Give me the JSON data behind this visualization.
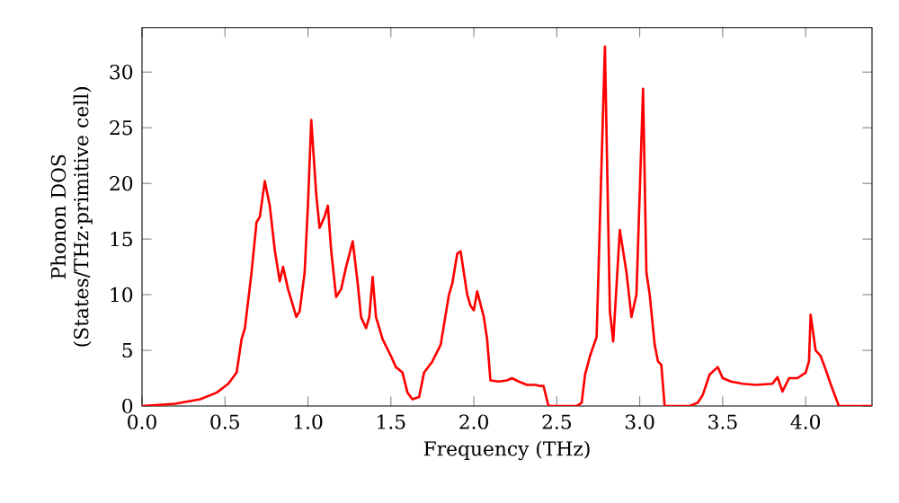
{
  "chart_data": {
    "type": "line",
    "xlabel": "Frequency (THz)",
    "ylabel": "Phonon DOS (States/THz·primitive cell)",
    "xlim": [
      0,
      4.4
    ],
    "ylim": [
      0,
      34
    ],
    "xticks": [
      {
        "value": 0,
        "label": "0.0"
      },
      {
        "value": 0.5,
        "label": "0.5"
      },
      {
        "value": 1,
        "label": "1.0"
      },
      {
        "value": 1.5,
        "label": "1.5"
      },
      {
        "value": 2,
        "label": "2.0"
      },
      {
        "value": 2.5,
        "label": "2.5"
      },
      {
        "value": 3,
        "label": "3.0"
      },
      {
        "value": 3.5,
        "label": "3.5"
      },
      {
        "value": 4,
        "label": "4.0"
      }
    ],
    "yticks": [
      0,
      5,
      10,
      15,
      20,
      25,
      30
    ],
    "marker": "none",
    "line_style": "solid",
    "series": [
      {
        "color": "#ff0000",
        "x": [
          0,
          0.2,
          0.35,
          0.45,
          0.52,
          0.57,
          0.6,
          0.62,
          0.66,
          0.69,
          0.71,
          0.74,
          0.77,
          0.8,
          0.83,
          0.85,
          0.88,
          0.91,
          0.93,
          0.95,
          0.98,
          1.0,
          1.02,
          1.05,
          1.07,
          1.1,
          1.12,
          1.14,
          1.17,
          1.2,
          1.23,
          1.27,
          1.3,
          1.32,
          1.35,
          1.37,
          1.39,
          1.41,
          1.45,
          1.5,
          1.53,
          1.57,
          1.6,
          1.63,
          1.67,
          1.7,
          1.75,
          1.8,
          1.85,
          1.87,
          1.9,
          1.92,
          1.96,
          1.98,
          2.0,
          2.02,
          2.06,
          2.08,
          2.1,
          2.15,
          2.2,
          2.23,
          2.27,
          2.32,
          2.37,
          2.4,
          2.42,
          2.45,
          2.5,
          2.62,
          2.65,
          2.67,
          2.7,
          2.74,
          2.79,
          2.82,
          2.84,
          2.88,
          2.92,
          2.95,
          2.98,
          3.02,
          3.04,
          3.06,
          3.09,
          3.11,
          3.13,
          3.15,
          3.3,
          3.35,
          3.38,
          3.42,
          3.47,
          3.5,
          3.55,
          3.62,
          3.7,
          3.8,
          3.83,
          3.86,
          3.9,
          3.95,
          4.0,
          4.02,
          4.03,
          4.06,
          4.09,
          4.12,
          4.15,
          4.2,
          4.4
        ],
        "values": [
          0,
          0.2,
          0.6,
          1.2,
          2,
          3,
          6,
          7,
          12,
          16.5,
          17,
          20.2,
          18,
          14,
          11.2,
          12.5,
          10.5,
          9,
          8,
          8.5,
          12,
          18,
          25.7,
          19,
          16,
          17,
          18,
          14,
          9.8,
          10.5,
          12.5,
          14.8,
          11,
          8,
          7,
          8,
          11.6,
          8,
          6,
          4.5,
          3.5,
          3,
          1.2,
          0.6,
          0.8,
          3,
          4,
          5.5,
          10,
          11,
          13.7,
          13.9,
          10,
          9,
          8.6,
          10.3,
          8,
          6,
          2.3,
          2.2,
          2.3,
          2.5,
          2.2,
          1.9,
          1.9,
          1.8,
          1.8,
          0,
          0,
          0,
          0.3,
          2.8,
          4.5,
          6.2,
          32.3,
          8.5,
          5.8,
          15.8,
          12,
          8,
          10,
          28.5,
          12,
          10,
          5.5,
          4,
          3.7,
          0,
          0,
          0.3,
          1,
          2.8,
          3.5,
          2.5,
          2.2,
          2,
          1.9,
          2,
          2.6,
          1.3,
          2.5,
          2.5,
          3,
          4,
          8.2,
          5,
          4.5,
          3.3,
          2,
          0,
          0
        ]
      }
    ]
  }
}
